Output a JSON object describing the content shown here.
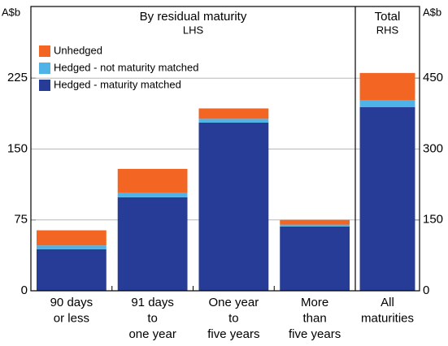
{
  "chart_data": [
    {
      "type": "bar",
      "stacked": true,
      "title": "By residual maturity",
      "subtitle": "LHS",
      "ylabel": "A$b",
      "categories": [
        [
          "90 days",
          "or less"
        ],
        [
          "91 days",
          "to",
          "one year"
        ],
        [
          "One year",
          "to",
          "five years"
        ],
        [
          "More",
          "than",
          "five years"
        ]
      ],
      "series": [
        {
          "name": "Hedged - maturity matched",
          "color": "#263c96",
          "values": [
            44,
            99,
            178,
            68
          ]
        },
        {
          "name": "Hedged - not maturity matched",
          "color": "#4fb3e8",
          "values": [
            4,
            5,
            4,
            2
          ]
        },
        {
          "name": "Unhedged",
          "color": "#f26522",
          "values": [
            16,
            25,
            11,
            5
          ]
        }
      ],
      "ylim": [
        0,
        300
      ],
      "yticks": [
        0,
        75,
        150,
        225
      ],
      "grid": true
    },
    {
      "type": "bar",
      "stacked": true,
      "title": "Total",
      "subtitle": "RHS",
      "ylabel": "A$b",
      "categories": [
        [
          "All",
          "maturities"
        ]
      ],
      "series": [
        {
          "color": "#263c96",
          "values": [
            389
          ]
        },
        {
          "color": "#4fb3e8",
          "values": [
            15
          ]
        },
        {
          "color": "#f26522",
          "values": [
            57
          ]
        }
      ],
      "ylim": [
        0,
        600
      ],
      "yticks": [
        0,
        150,
        300,
        450
      ],
      "grid": true
    }
  ]
}
